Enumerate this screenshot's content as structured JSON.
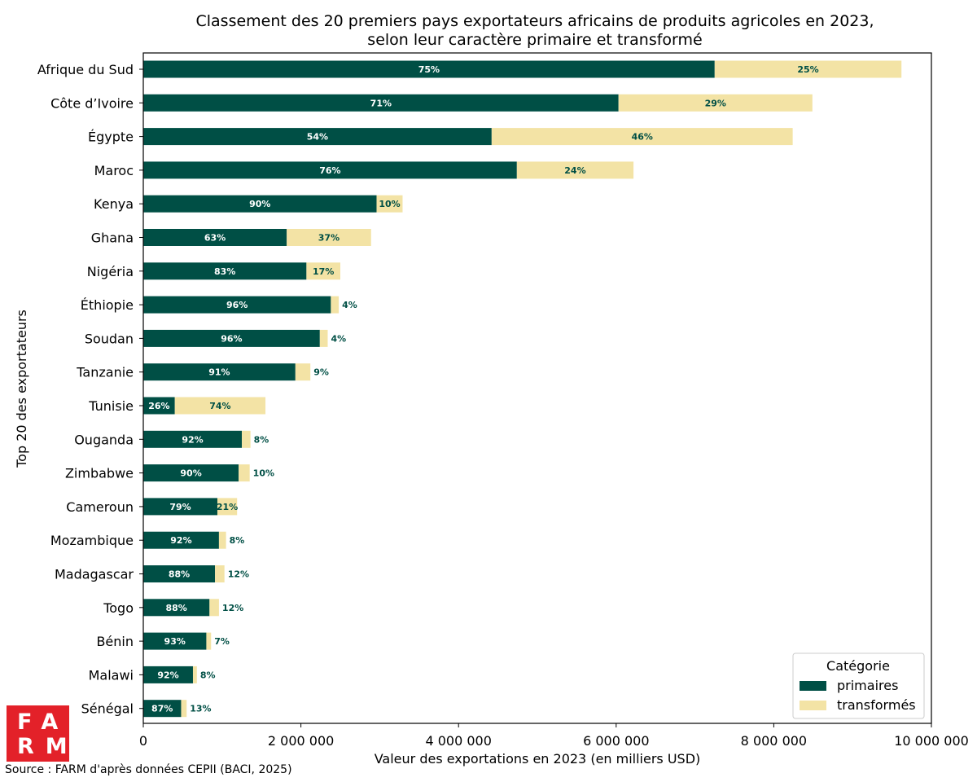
{
  "chart_data": {
    "type": "bar",
    "orientation": "horizontal",
    "stacked": true,
    "title": "Classement des 20 premiers pays exportateurs africains de produits agricoles en 2023,",
    "subtitle": "selon leur caractère primaire et transformé",
    "xlabel": "Valeur des exportations en 2023 (en milliers USD)",
    "ylabel": "Top 20 des exportateurs",
    "xlim": [
      0,
      10000000
    ],
    "xticks": [
      0,
      2000000,
      4000000,
      6000000,
      8000000,
      10000000
    ],
    "xtick_labels": [
      "0",
      "2 000 000",
      "4 000 000",
      "6 000 000",
      "8 000 000",
      "10 000 000"
    ],
    "grid": false,
    "legend_position": "lower-right",
    "legend_title": "Catégorie",
    "categories": [
      "Afrique du Sud",
      "Côte d’Ivoire",
      "Égypte",
      "Maroc",
      "Kenya",
      "Ghana",
      "Nigéria",
      "Éthiopie",
      "Soudan",
      "Tanzanie",
      "Tunisie",
      "Ouganda",
      "Zimbabwe",
      "Cameroun",
      "Mozambique",
      "Madagascar",
      "Togo",
      "Bénin",
      "Malawi",
      "Sénégal"
    ],
    "series": [
      {
        "name": "primaires",
        "color": "#004f45",
        "values": [
          7250000,
          6030000,
          4420000,
          4740000,
          2960000,
          1820000,
          2070000,
          2380000,
          2240000,
          1930000,
          400000,
          1250000,
          1210000,
          940000,
          960000,
          910000,
          840000,
          800000,
          630000,
          480000
        ],
        "labels": [
          "75%",
          "71%",
          "54%",
          "76%",
          "90%",
          "63%",
          "83%",
          "96%",
          "96%",
          "91%",
          "26%",
          "92%",
          "90%",
          "79%",
          "92%",
          "88%",
          "88%",
          "93%",
          "92%",
          "87%"
        ]
      },
      {
        "name": "transformés",
        "color": "#f3e3a5",
        "values": [
          2370000,
          2460000,
          3820000,
          1480000,
          330000,
          1070000,
          430000,
          100000,
          100000,
          190000,
          1150000,
          110000,
          140000,
          250000,
          90000,
          120000,
          120000,
          60000,
          50000,
          70000
        ],
        "labels": [
          "25%",
          "29%",
          "46%",
          "24%",
          "10%",
          "37%",
          "17%",
          "4%",
          "4%",
          "9%",
          "74%",
          "8%",
          "10%",
          "21%",
          "8%",
          "12%",
          "12%",
          "7%",
          "8%",
          "13%"
        ]
      }
    ]
  },
  "source": "Source : FARM d'après données CEPII (BACI, 2025)",
  "logo": {
    "line1": "FA",
    "line2": "RM"
  }
}
